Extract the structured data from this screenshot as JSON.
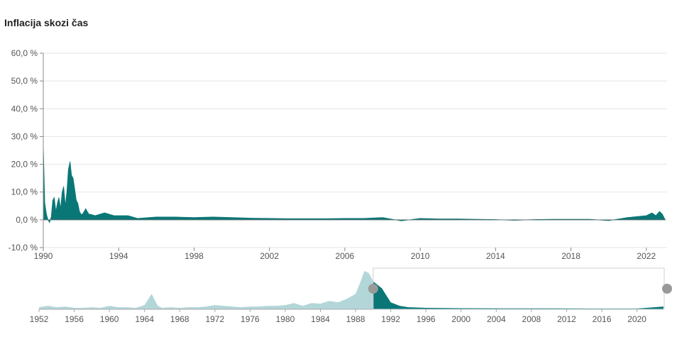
{
  "page": {
    "title": "Inflacija skozi čas"
  },
  "colors": {
    "accent": "#0a7777",
    "light": "#b3d6d9",
    "grid": "#e5e5e5",
    "handle": "#999999"
  },
  "chart_data": [
    {
      "type": "area",
      "title": "Inflacija skozi čas",
      "y_tick_labels": [
        "60,0 %",
        "50,0 %",
        "40,0 %",
        "30,0 %",
        "20,0 %",
        "10,0 %",
        "0,0 %",
        "-10,0 %"
      ],
      "y_ticks": [
        60,
        50,
        40,
        30,
        20,
        10,
        0,
        -10
      ],
      "ylim": [
        -10,
        60
      ],
      "x_tick_labels": [
        "1990",
        "1994",
        "1998",
        "2002",
        "2006",
        "2010",
        "2014",
        "2018",
        "2022"
      ],
      "x_ticks": [
        1990,
        1994,
        1998,
        2002,
        2006,
        2010,
        2014,
        2018,
        2022
      ],
      "xlim": [
        1990,
        2023.1
      ],
      "grid": true,
      "series": [
        {
          "x": [
            1990,
            1990.08,
            1990.17,
            1990.25,
            1990.33,
            1990.42,
            1990.5,
            1990.58,
            1990.67,
            1990.75,
            1990.83,
            1990.92,
            1991,
            1991.08,
            1991.17,
            1991.25,
            1991.33,
            1991.42,
            1991.5,
            1991.58,
            1991.67,
            1991.75,
            1991.83,
            1991.92,
            1992,
            1992.08,
            1992.17,
            1992.25,
            1992.33,
            1992.42,
            1992.5,
            1992.75,
            1993,
            1993.25,
            1993.5,
            1993.75,
            1994,
            1994.5,
            1995,
            1996,
            1997,
            1998,
            1999,
            2000,
            2001,
            2002,
            2003,
            2004,
            2005,
            2006,
            2007,
            2008,
            2009,
            2010,
            2011,
            2012,
            2013,
            2014,
            2015,
            2016,
            2017,
            2018,
            2019,
            2020,
            2021,
            2022,
            2022.3,
            2022.5,
            2022.7,
            2022.85,
            2023
          ],
          "y": [
            27,
            6,
            2,
            0,
            -1,
            1,
            7,
            8,
            3,
            6,
            8,
            4,
            10,
            12,
            5,
            10,
            18,
            21,
            16,
            15,
            11,
            7,
            6,
            3,
            2,
            2,
            3,
            4,
            3,
            2,
            2,
            1.5,
            2,
            2.5,
            2,
            1.5,
            1.5,
            1.5,
            0.5,
            1,
            1,
            0.8,
            1,
            0.8,
            0.6,
            0.5,
            0.4,
            0.4,
            0.4,
            0.5,
            0.5,
            0.8,
            -0.4,
            0.5,
            0.3,
            0.3,
            0.2,
            0.1,
            -0.2,
            0.1,
            0.2,
            0.2,
            0.2,
            -0.3,
            0.8,
            1.5,
            2.5,
            1.5,
            3,
            2,
            0
          ]
        }
      ]
    },
    {
      "type": "area",
      "role": "navigator",
      "x_tick_labels": [
        "1952",
        "1956",
        "1960",
        "1964",
        "1968",
        "1972",
        "1976",
        "1980",
        "1984",
        "1988",
        "1992",
        "1996",
        "2000",
        "2004",
        "2008",
        "2012",
        "2016",
        "2020"
      ],
      "x_ticks": [
        1952,
        1956,
        1960,
        1964,
        1968,
        1972,
        1976,
        1980,
        1984,
        1988,
        1992,
        1996,
        2000,
        2004,
        2008,
        2012,
        2016,
        2020
      ],
      "xlim": [
        1952,
        2023.1
      ],
      "selected_range": [
        1990,
        2023.1
      ],
      "series": [
        {
          "x": [
            1952,
            1953,
            1954,
            1955,
            1956,
            1957,
            1958,
            1959,
            1960,
            1961,
            1962,
            1963,
            1964,
            1964.8,
            1965.5,
            1966,
            1967,
            1968,
            1969,
            1970,
            1971,
            1972,
            1973,
            1974,
            1975,
            1976,
            1977,
            1978,
            1979,
            1980,
            1981,
            1982,
            1983,
            1984,
            1985,
            1986,
            1987,
            1988,
            1988.5,
            1989,
            1989.5,
            1990,
            1990.5,
            1991,
            1991.5,
            1992,
            1993,
            1994,
            1996,
            2000,
            2005,
            2010,
            2015,
            2020,
            2022,
            2023
          ],
          "y": [
            3,
            5,
            3,
            4,
            2,
            2,
            3,
            2,
            5,
            3,
            3,
            2,
            6,
            22,
            5,
            2,
            3,
            2,
            3,
            3,
            4,
            6,
            5,
            4,
            3,
            4,
            4,
            5,
            5,
            6,
            9,
            5,
            9,
            8,
            12,
            10,
            15,
            22,
            38,
            55,
            52,
            40,
            35,
            30,
            20,
            10,
            5,
            3,
            2,
            1.5,
            1.2,
            1.2,
            1,
            1,
            3,
            4
          ]
        }
      ]
    }
  ]
}
